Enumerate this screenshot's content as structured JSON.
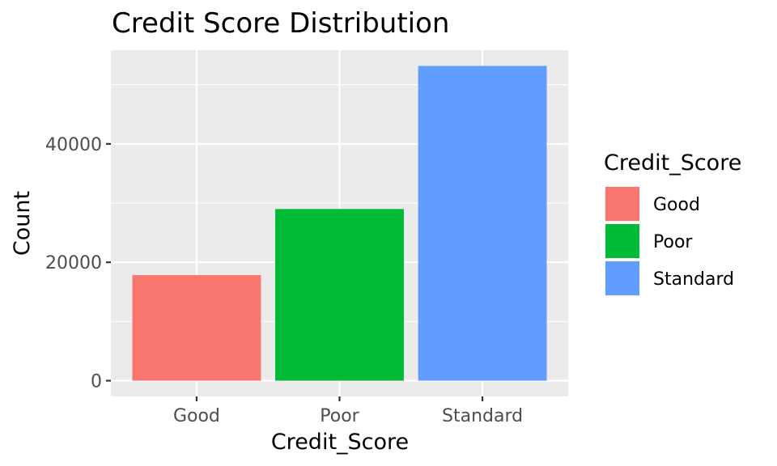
{
  "chart_data": {
    "type": "bar",
    "title": "Credit Score Distribution",
    "xlabel": "Credit_Score",
    "ylabel": "Count",
    "categories": [
      "Good",
      "Poor",
      "Standard"
    ],
    "values": [
      17828,
      28998,
      53174
    ],
    "colors": [
      "#F8766D",
      "#00BA38",
      "#619CFF"
    ],
    "ylim": [
      -2659,
      55833
    ],
    "yticks": [
      0,
      20000,
      40000
    ],
    "ytick_labels": [
      "0",
      "20000",
      "40000"
    ],
    "panel_background": "#EBEBEB",
    "gridline_color": "#FFFFFF",
    "grid": true,
    "legend": {
      "title": "Credit_Score",
      "position": "right",
      "entries": [
        "Good",
        "Poor",
        "Standard"
      ]
    }
  }
}
